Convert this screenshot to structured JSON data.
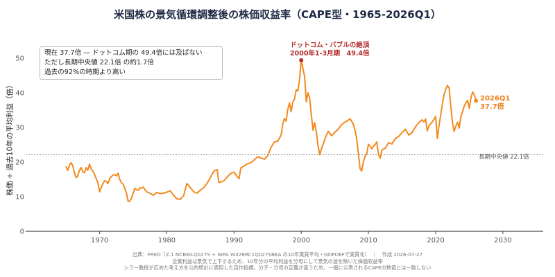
{
  "title": "米国株の景気循環調整後の株価収益率（CAPE型・1965-2026Q1）",
  "summary": {
    "line1": "現在 37.7倍 ― ドットコム期の 49.4倍には及ばない",
    "line2": "ただし長期中央値 22.1倍 の約1.7倍",
    "line3": "過去の92%の時期より高い"
  },
  "peak_annotation": {
    "line1": "ドットコム・バブルの絶頂",
    "line2": "2000年1-3月期　49.4倍"
  },
  "latest_annotation": {
    "line1": "2026Q1",
    "line2": "37.7倍"
  },
  "median_label": "長期中央値 22.1倍",
  "footer": {
    "line1": "出典：FRED（Z.1 NCBEILQ027S ÷ NIPA W328RC1Q027SBEA の10年実質平均・GDPDEFで実質化）　｜　作成 2026-07-27",
    "line2": "企業利益は景気で上下するため、10年分の平均利益を分母にして景気の波を除いた株価収益率",
    "line3": "シラー教授が広めた考え方を公的統計に適用した自作指標。分子・分母の定義が違うため、一般に公表されるCAPEの数値とは一致しない"
  },
  "colors": {
    "line": "#f28a1e",
    "peak": "#b52d2d",
    "median": "#8a8a8a",
    "axis": "#222222"
  },
  "chart_data": {
    "type": "line",
    "title": "米国株の景気循環調整後の株価収益率（CAPE型・1965-2026Q1）",
    "xlabel": "",
    "ylabel": "株価 ÷ 過去10年の平均利益（倍）",
    "xlim": [
      1959,
      2036
    ],
    "ylim": [
      0,
      55
    ],
    "xticks": [
      1970,
      1980,
      1990,
      2000,
      2010,
      2020,
      2030
    ],
    "yticks": [
      0,
      10,
      20,
      30,
      40,
      50
    ],
    "grid": false,
    "median": 22.1,
    "peak": {
      "x": 2000.0,
      "y": 49.4
    },
    "latest": {
      "x": 2026.0,
      "y": 37.7
    },
    "series": [
      {
        "x": [
          1965.0,
          1965.25,
          1965.5,
          1965.75,
          1966.0,
          1966.25,
          1966.5,
          1966.75,
          1967.0,
          1967.25,
          1967.5,
          1967.75,
          1968.0,
          1968.25,
          1968.5,
          1968.75,
          1969.0,
          1969.25,
          1969.5,
          1969.75,
          1970.0,
          1970.25,
          1970.5,
          1970.75,
          1971.0,
          1971.25,
          1971.5,
          1971.75,
          1972.0,
          1972.25,
          1972.5,
          1972.75,
          1973.0,
          1973.25,
          1973.5,
          1973.75,
          1974.0,
          1974.25,
          1974.5,
          1974.75,
          1975.0,
          1975.25,
          1975.5,
          1975.75,
          1976.0,
          1976.25,
          1976.5,
          1976.75,
          1977.0,
          1977.5,
          1978.0,
          1978.5,
          1979.0,
          1979.5,
          1980.0,
          1980.5,
          1981.0,
          1981.5,
          1982.0,
          1982.25,
          1982.5,
          1982.75,
          1983.0,
          1983.5,
          1984.0,
          1984.5,
          1985.0,
          1985.5,
          1986.0,
          1986.5,
          1987.0,
          1987.5,
          1987.75,
          1988.0,
          1988.5,
          1989.0,
          1989.5,
          1990.0,
          1990.5,
          1990.75,
          1991.0,
          1991.5,
          1992.0,
          1992.5,
          1993.0,
          1993.5,
          1994.0,
          1994.5,
          1995.0,
          1995.5,
          1996.0,
          1996.5,
          1997.0,
          1997.25,
          1997.5,
          1997.75,
          1998.0,
          1998.25,
          1998.5,
          1998.75,
          1999.0,
          1999.25,
          1999.5,
          1999.75,
          2000.0,
          2000.25,
          2000.5,
          2000.75,
          2001.0,
          2001.25,
          2001.5,
          2001.75,
          2002.0,
          2002.25,
          2002.5,
          2002.75,
          2003.0,
          2003.25,
          2003.5,
          2003.75,
          2004.0,
          2004.5,
          2005.0,
          2005.5,
          2006.0,
          2006.5,
          2007.0,
          2007.25,
          2007.5,
          2007.75,
          2008.0,
          2008.25,
          2008.5,
          2008.75,
          2009.0,
          2009.25,
          2009.5,
          2009.75,
          2010.0,
          2010.25,
          2010.5,
          2010.75,
          2011.0,
          2011.25,
          2011.5,
          2011.75,
          2012.0,
          2012.5,
          2013.0,
          2013.5,
          2014.0,
          2014.5,
          2015.0,
          2015.5,
          2016.0,
          2016.5,
          2017.0,
          2017.5,
          2018.0,
          2018.25,
          2018.5,
          2018.75,
          2019.0,
          2019.5,
          2020.0,
          2020.25,
          2020.5,
          2020.75,
          2021.0,
          2021.25,
          2021.5,
          2021.75,
          2022.0,
          2022.25,
          2022.5,
          2022.75,
          2023.0,
          2023.25,
          2023.5,
          2023.75,
          2024.0,
          2024.25,
          2024.5,
          2024.75,
          2025.0,
          2025.25,
          2025.5,
          2025.75,
          2026.0
        ],
        "values": [
          18.8,
          17.6,
          19.0,
          19.8,
          19.0,
          17.0,
          15.5,
          16.0,
          17.6,
          18.4,
          17.2,
          16.9,
          18.4,
          17.6,
          19.4,
          18.0,
          17.4,
          16.4,
          15.2,
          14.0,
          11.4,
          12.6,
          13.8,
          14.6,
          14.4,
          13.8,
          15.2,
          15.8,
          16.2,
          16.4,
          16.0,
          16.8,
          15.0,
          14.0,
          13.6,
          12.4,
          11.0,
          8.6,
          8.7,
          9.6,
          11.0,
          12.4,
          12.0,
          11.8,
          12.6,
          12.4,
          12.8,
          12.0,
          11.4,
          11.0,
          10.4,
          11.2,
          10.9,
          11.0,
          11.3,
          11.7,
          10.4,
          9.4,
          9.2,
          9.8,
          10.2,
          12.2,
          13.8,
          12.6,
          11.4,
          11.0,
          11.9,
          12.6,
          13.9,
          15.6,
          17.4,
          17.8,
          14.1,
          14.2,
          14.6,
          15.7,
          16.7,
          17.1,
          15.7,
          15.2,
          18.2,
          18.9,
          19.5,
          19.8,
          20.6,
          21.5,
          21.2,
          20.8,
          21.8,
          24.2,
          25.8,
          26.0,
          27.8,
          31.0,
          32.6,
          31.8,
          35.2,
          37.1,
          34.5,
          37.4,
          38.2,
          40.9,
          40.5,
          44.0,
          49.4,
          47.1,
          44.7,
          37.4,
          40.0,
          38.5,
          33.6,
          29.2,
          31.4,
          28.6,
          24.8,
          22.1,
          23.8,
          25.1,
          26.5,
          27.8,
          28.9,
          27.6,
          28.6,
          29.5,
          30.8,
          31.5,
          32.1,
          32.5,
          31.8,
          30.9,
          29.2,
          26.8,
          22.5,
          18.1,
          17.4,
          20.1,
          21.6,
          22.5,
          25.1,
          24.7,
          23.8,
          24.6,
          25.1,
          25.8,
          22.1,
          21.1,
          23.5,
          24.0,
          25.6,
          25.2,
          26.8,
          27.4,
          28.5,
          29.5,
          27.8,
          28.5,
          30.2,
          31.4,
          32.2,
          31.6,
          32.4,
          29.0,
          30.5,
          31.6,
          33.2,
          26.8,
          30.5,
          33.7,
          36.8,
          39.5,
          41.0,
          42.1,
          41.4,
          36.1,
          31.5,
          28.8,
          30.4,
          31.5,
          29.8,
          33.1,
          34.5,
          36.2,
          37.1,
          37.8,
          35.5,
          38.6,
          40.2,
          39.4,
          37.7
        ]
      }
    ]
  }
}
